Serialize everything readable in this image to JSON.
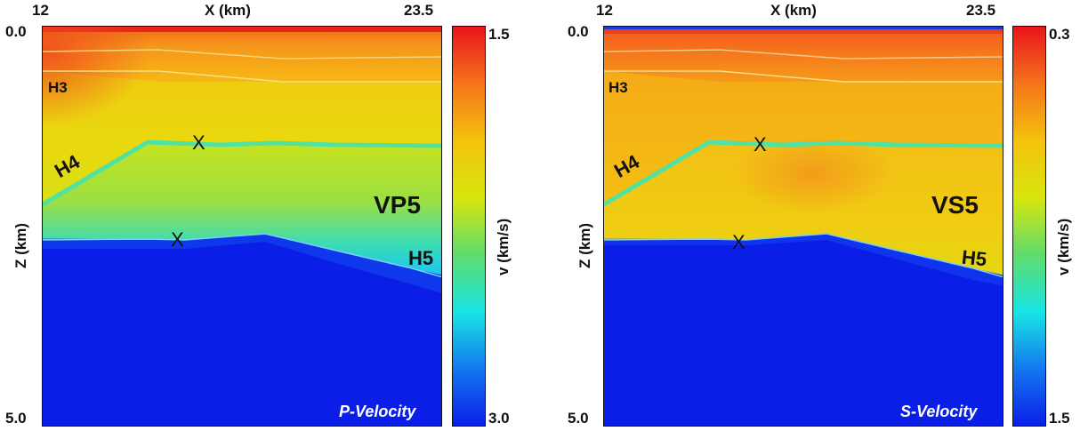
{
  "panels": [
    {
      "id": "p",
      "x_axis": {
        "label": "X (km)",
        "min": "12",
        "max": "23.5"
      },
      "z_axis": {
        "label": "Z (km)",
        "min": "0.0",
        "max": "5.0"
      },
      "colorbar": {
        "label": "v (km/s)",
        "top": "1.5",
        "bottom": "3.0",
        "colors": [
          "#e8141b",
          "#f5741b",
          "#f4c20d",
          "#d8e60e",
          "#5fdc6c",
          "#18e6e4",
          "#1478f0",
          "#0a1fe8"
        ]
      },
      "horizons": {
        "h3": "H3",
        "h4": "H4",
        "h5": "H5"
      },
      "model_label": "VP5",
      "markers": [
        "X",
        "X"
      ],
      "caption": "P-Velocity"
    },
    {
      "id": "s",
      "x_axis": {
        "label": "X (km)",
        "min": "12",
        "max": "23.5"
      },
      "z_axis": {
        "label": "Z (km)",
        "min": "0.0",
        "max": "5.0"
      },
      "colorbar": {
        "label": "v (km/s)",
        "top": "0.3",
        "bottom": "1.5",
        "colors": [
          "#e8141b",
          "#f5741b",
          "#f4c20d",
          "#d8e60e",
          "#5fdc6c",
          "#18e6e4",
          "#1478f0",
          "#0a1fe8"
        ]
      },
      "horizons": {
        "h3": "H3",
        "h4": "H4",
        "h5": "H5"
      },
      "model_label": "VS5",
      "markers": [
        "X",
        "X"
      ],
      "caption": "S-Velocity"
    }
  ]
}
